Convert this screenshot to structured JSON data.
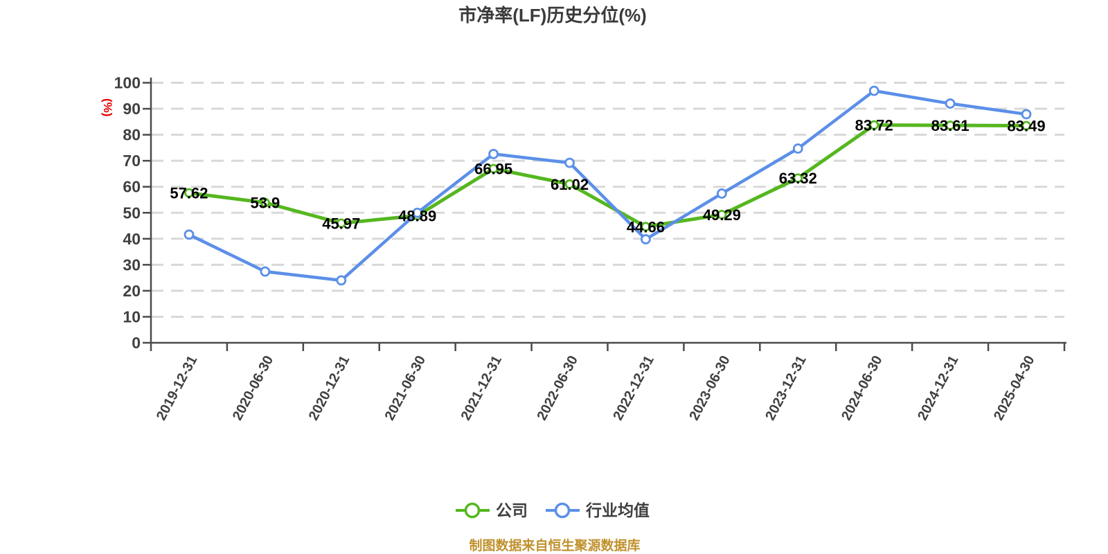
{
  "title": "市净率(LF)历史分位(%)",
  "y_axis_label": "(%)",
  "footer": "制图数据来自恒生聚源数据库",
  "legend": [
    {
      "label": "公司",
      "color": "#55b71f"
    },
    {
      "label": "行业均值",
      "color": "#5b8fe8"
    }
  ],
  "colors": {
    "background": "#ffffff",
    "title": "#3a3a3a",
    "axis": "#4a4a4a",
    "tick_label": "#404040",
    "gridline": "#d8d8d8",
    "value_label": "#000000",
    "y_unit_label": "#e60000",
    "legend_text": "#3f3f3f",
    "footer_text": "#c0912d"
  },
  "chart_data": {
    "type": "line",
    "title": "市净率(LF)历史分位(%)",
    "ylabel": "(%)",
    "ylim": [
      0,
      100
    ],
    "ytick_step": 10,
    "grid": "horizontal-dashed",
    "legend_position": "bottom",
    "categories": [
      "2019-12-31",
      "2020-06-30",
      "2020-12-31",
      "2021-06-30",
      "2021-12-31",
      "2022-06-30",
      "2022-12-31",
      "2023-06-30",
      "2023-12-31",
      "2024-06-30",
      "2024-12-31",
      "2025-04-30"
    ],
    "series": [
      {
        "name": "公司",
        "color": "#55b71f",
        "line_width": 5,
        "show_value_labels": true,
        "values": [
          57.62,
          53.9,
          45.97,
          48.89,
          66.95,
          61.02,
          44.66,
          49.29,
          63.32,
          83.72,
          83.61,
          83.49
        ]
      },
      {
        "name": "行业均值",
        "color": "#5b8fe8",
        "line_width": 4.5,
        "show_value_labels": false,
        "values": [
          41.6,
          27.4,
          24.0,
          50.0,
          72.6,
          69.2,
          39.8,
          57.4,
          74.7,
          96.9,
          92.0,
          87.9
        ]
      }
    ]
  }
}
